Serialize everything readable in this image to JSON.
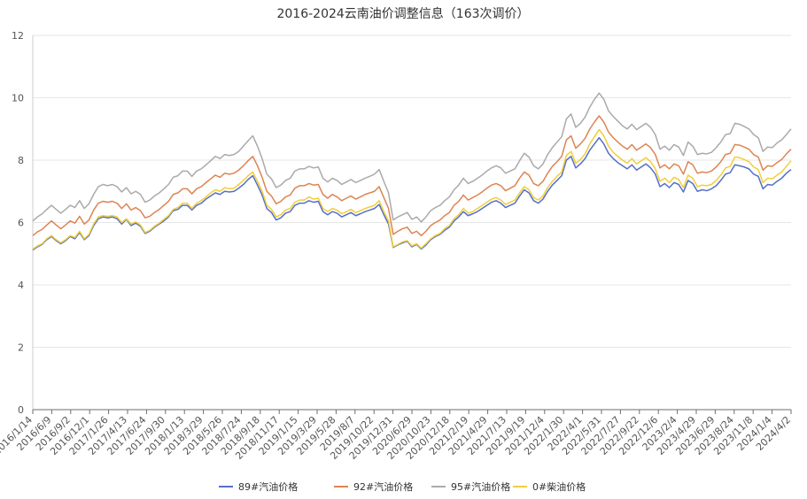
{
  "chart_data": {
    "type": "line",
    "title": "2016-2024云南油价调整信息（163次调价）",
    "xlabel": "",
    "ylabel": "",
    "ylim": [
      0,
      12
    ],
    "yticks": [
      0,
      2,
      4,
      6,
      8,
      10,
      12
    ],
    "grid": true,
    "legend_position": "bottom",
    "xtick_labels": [
      "2016/1/14",
      "2016/6/9",
      "2016/9/2",
      "2016/12/1",
      "2017/1/26",
      "2017/4/13",
      "2017/6/24",
      "2017/9/30",
      "2018/1/13",
      "2018/3/29",
      "2018/5/26",
      "2018/7/24",
      "2018/9/18",
      "2018/11/17",
      "2019/1/15",
      "2019/3/29",
      "2019/5/28",
      "2019/8/7",
      "2019/10/22",
      "2019/12/31",
      "2020/6/29",
      "2020/10/23",
      "2020/12/18",
      "2021/2/19",
      "2021/4/29",
      "2021/7/13",
      "2021/9/19",
      "2021/12/4",
      "2022/1/30",
      "2022/4/1",
      "2022/5/31",
      "2022/7/27",
      "2022/9/22",
      "2022/12/6",
      "2023/2/4",
      "2023/4/29",
      "2023/6/29",
      "2023/8/24",
      "2023/11/8",
      "2024/1/4",
      "2024/4/2"
    ],
    "series": [
      {
        "name": "89#汽油价格",
        "color": "#5470c6",
        "values": [
          5.12,
          5.22,
          5.3,
          5.45,
          5.55,
          5.42,
          5.32,
          5.42,
          5.55,
          5.48,
          5.68,
          5.45,
          5.58,
          5.9,
          6.12,
          6.18,
          6.15,
          6.18,
          6.12,
          5.95,
          6.1,
          5.9,
          5.98,
          5.88,
          5.65,
          5.72,
          5.85,
          5.95,
          6.05,
          6.18,
          6.38,
          6.42,
          6.55,
          6.55,
          6.4,
          6.55,
          6.62,
          6.75,
          6.85,
          6.95,
          6.9,
          7.0,
          6.98,
          7.0,
          7.1,
          7.22,
          7.38,
          7.5,
          7.2,
          6.88,
          6.45,
          6.32,
          6.08,
          6.15,
          6.3,
          6.35,
          6.55,
          6.62,
          6.62,
          6.7,
          6.65,
          6.68,
          6.35,
          6.25,
          6.35,
          6.3,
          6.18,
          6.25,
          6.32,
          6.22,
          6.28,
          6.35,
          6.4,
          6.45,
          6.58,
          6.25,
          5.95,
          5.2,
          5.28,
          5.35,
          5.4,
          5.22,
          5.3,
          5.15,
          5.28,
          5.45,
          5.55,
          5.62,
          5.75,
          5.85,
          6.05,
          6.18,
          6.35,
          6.22,
          6.28,
          6.35,
          6.45,
          6.55,
          6.65,
          6.7,
          6.62,
          6.48,
          6.55,
          6.62,
          6.85,
          7.05,
          6.95,
          6.7,
          6.62,
          6.75,
          7.0,
          7.2,
          7.35,
          7.5,
          8.0,
          8.12,
          7.75,
          7.88,
          8.05,
          8.32,
          8.52,
          8.72,
          8.52,
          8.22,
          8.05,
          7.92,
          7.82,
          7.72,
          7.85,
          7.68,
          7.78,
          7.88,
          7.75,
          7.55,
          7.15,
          7.25,
          7.12,
          7.28,
          7.22,
          6.98,
          7.35,
          7.25,
          7.0,
          7.05,
          7.02,
          7.08,
          7.18,
          7.35,
          7.55,
          7.6,
          7.85,
          7.82,
          7.78,
          7.72,
          7.55,
          7.48,
          7.08,
          7.22,
          7.2,
          7.32,
          7.42,
          7.58,
          7.7
        ]
      },
      {
        "name": "92#汽油价格",
        "color": "#dd8452",
        "values": [
          5.58,
          5.7,
          5.78,
          5.92,
          6.05,
          5.92,
          5.8,
          5.92,
          6.05,
          5.98,
          6.2,
          5.95,
          6.08,
          6.4,
          6.62,
          6.68,
          6.65,
          6.68,
          6.62,
          6.45,
          6.6,
          6.4,
          6.48,
          6.38,
          6.15,
          6.2,
          6.32,
          6.42,
          6.55,
          6.68,
          6.9,
          6.95,
          7.08,
          7.08,
          6.92,
          7.08,
          7.15,
          7.28,
          7.4,
          7.52,
          7.45,
          7.58,
          7.55,
          7.58,
          7.68,
          7.82,
          7.98,
          8.12,
          7.82,
          7.45,
          7.0,
          6.85,
          6.6,
          6.68,
          6.82,
          6.88,
          7.1,
          7.18,
          7.18,
          7.25,
          7.2,
          7.22,
          6.9,
          6.78,
          6.9,
          6.82,
          6.7,
          6.78,
          6.85,
          6.75,
          6.82,
          6.9,
          6.95,
          7.0,
          7.15,
          6.8,
          6.45,
          5.62,
          5.72,
          5.8,
          5.85,
          5.65,
          5.72,
          5.58,
          5.72,
          5.9,
          6.0,
          6.08,
          6.22,
          6.32,
          6.55,
          6.68,
          6.88,
          6.72,
          6.8,
          6.88,
          6.98,
          7.1,
          7.2,
          7.25,
          7.18,
          7.02,
          7.1,
          7.18,
          7.42,
          7.62,
          7.52,
          7.25,
          7.18,
          7.32,
          7.58,
          7.8,
          7.95,
          8.12,
          8.65,
          8.78,
          8.38,
          8.52,
          8.7,
          9.0,
          9.22,
          9.42,
          9.22,
          8.9,
          8.72,
          8.58,
          8.45,
          8.35,
          8.5,
          8.32,
          8.42,
          8.52,
          8.4,
          8.18,
          7.75,
          7.85,
          7.72,
          7.88,
          7.82,
          7.55,
          7.95,
          7.85,
          7.58,
          7.62,
          7.6,
          7.65,
          7.78,
          7.95,
          8.18,
          8.22,
          8.5,
          8.48,
          8.42,
          8.35,
          8.18,
          8.1,
          7.68,
          7.82,
          7.8,
          7.92,
          8.02,
          8.2,
          8.35
        ]
      },
      {
        "name": "95#汽油价格",
        "color": "#aaaaaa",
        "values": [
          6.05,
          6.18,
          6.28,
          6.42,
          6.55,
          6.42,
          6.3,
          6.42,
          6.55,
          6.48,
          6.7,
          6.45,
          6.6,
          6.9,
          7.15,
          7.22,
          7.18,
          7.22,
          7.15,
          6.98,
          7.12,
          6.92,
          7.0,
          6.9,
          6.65,
          6.72,
          6.85,
          6.95,
          7.08,
          7.22,
          7.45,
          7.5,
          7.65,
          7.65,
          7.48,
          7.65,
          7.72,
          7.85,
          7.98,
          8.12,
          8.05,
          8.18,
          8.15,
          8.18,
          8.28,
          8.45,
          8.62,
          8.78,
          8.45,
          8.05,
          7.55,
          7.4,
          7.12,
          7.2,
          7.35,
          7.42,
          7.65,
          7.72,
          7.72,
          7.8,
          7.75,
          7.78,
          7.42,
          7.3,
          7.42,
          7.35,
          7.22,
          7.3,
          7.38,
          7.28,
          7.35,
          7.42,
          7.48,
          7.55,
          7.7,
          7.32,
          6.95,
          6.08,
          6.18,
          6.25,
          6.32,
          6.1,
          6.18,
          6.02,
          6.18,
          6.38,
          6.48,
          6.55,
          6.7,
          6.82,
          7.05,
          7.2,
          7.42,
          7.25,
          7.32,
          7.42,
          7.52,
          7.65,
          7.75,
          7.82,
          7.75,
          7.58,
          7.65,
          7.72,
          7.98,
          8.22,
          8.1,
          7.82,
          7.72,
          7.88,
          8.18,
          8.4,
          8.58,
          8.75,
          9.32,
          9.48,
          9.05,
          9.18,
          9.38,
          9.7,
          9.95,
          10.15,
          9.95,
          9.58,
          9.4,
          9.25,
          9.1,
          9.0,
          9.15,
          8.98,
          9.08,
          9.18,
          9.05,
          8.82,
          8.35,
          8.45,
          8.32,
          8.5,
          8.42,
          8.15,
          8.58,
          8.45,
          8.18,
          8.22,
          8.2,
          8.25,
          8.4,
          8.58,
          8.82,
          8.85,
          9.18,
          9.15,
          9.08,
          9.0,
          8.82,
          8.72,
          8.28,
          8.42,
          8.4,
          8.55,
          8.65,
          8.82,
          9.0
        ]
      },
      {
        "name": "0#柴油价格",
        "color": "#f1ce3a",
        "values": [
          5.15,
          5.25,
          5.32,
          5.48,
          5.58,
          5.45,
          5.35,
          5.45,
          5.58,
          5.52,
          5.72,
          5.48,
          5.62,
          5.95,
          6.18,
          6.22,
          6.2,
          6.22,
          6.18,
          6.0,
          6.12,
          5.95,
          6.02,
          5.92,
          5.68,
          5.75,
          5.88,
          5.98,
          6.1,
          6.22,
          6.42,
          6.48,
          6.62,
          6.62,
          6.45,
          6.62,
          6.7,
          6.82,
          6.95,
          7.05,
          7.0,
          7.12,
          7.08,
          7.1,
          7.22,
          7.35,
          7.5,
          7.62,
          7.32,
          7.0,
          6.55,
          6.42,
          6.18,
          6.25,
          6.4,
          6.45,
          6.65,
          6.72,
          6.72,
          6.82,
          6.75,
          6.78,
          6.45,
          6.35,
          6.45,
          6.4,
          6.28,
          6.35,
          6.42,
          6.32,
          6.38,
          6.45,
          6.5,
          6.55,
          6.7,
          6.35,
          6.05,
          5.22,
          5.3,
          5.38,
          5.42,
          5.25,
          5.32,
          5.18,
          5.32,
          5.48,
          5.58,
          5.65,
          5.8,
          5.9,
          6.12,
          6.25,
          6.45,
          6.3,
          6.35,
          6.45,
          6.55,
          6.65,
          6.75,
          6.8,
          6.72,
          6.58,
          6.65,
          6.72,
          6.95,
          7.15,
          7.05,
          6.8,
          6.72,
          6.85,
          7.12,
          7.32,
          7.48,
          7.62,
          8.15,
          8.28,
          7.9,
          8.02,
          8.2,
          8.52,
          8.75,
          8.98,
          8.78,
          8.45,
          8.25,
          8.12,
          8.0,
          7.9,
          8.05,
          7.88,
          7.98,
          8.08,
          7.95,
          7.72,
          7.32,
          7.42,
          7.28,
          7.45,
          7.38,
          7.12,
          7.52,
          7.42,
          7.15,
          7.2,
          7.18,
          7.22,
          7.35,
          7.52,
          7.75,
          7.8,
          8.1,
          8.08,
          8.02,
          7.95,
          7.78,
          7.7,
          7.28,
          7.42,
          7.4,
          7.52,
          7.62,
          7.8,
          7.98
        ]
      }
    ]
  }
}
